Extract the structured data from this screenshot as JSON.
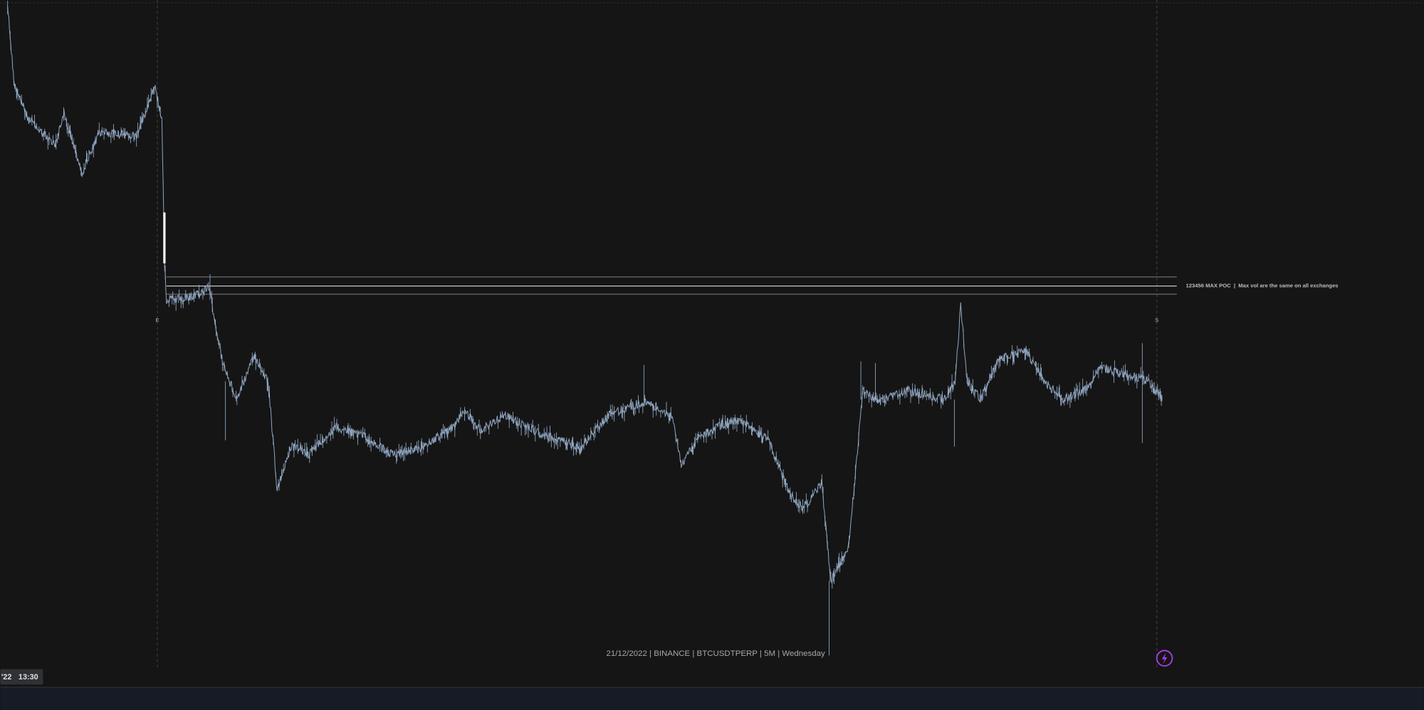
{
  "annotations": {
    "poc_label": "123456 MAX POC  |  Max vol are the same on all exchanges",
    "start_marker": "E",
    "end_marker": "S"
  },
  "footer": "21/12/2022 | BINANCE | BTCUSDTPERP | 5M | Wednesday",
  "time_axis": {
    "date": "'22",
    "time": "13:30"
  }
}
